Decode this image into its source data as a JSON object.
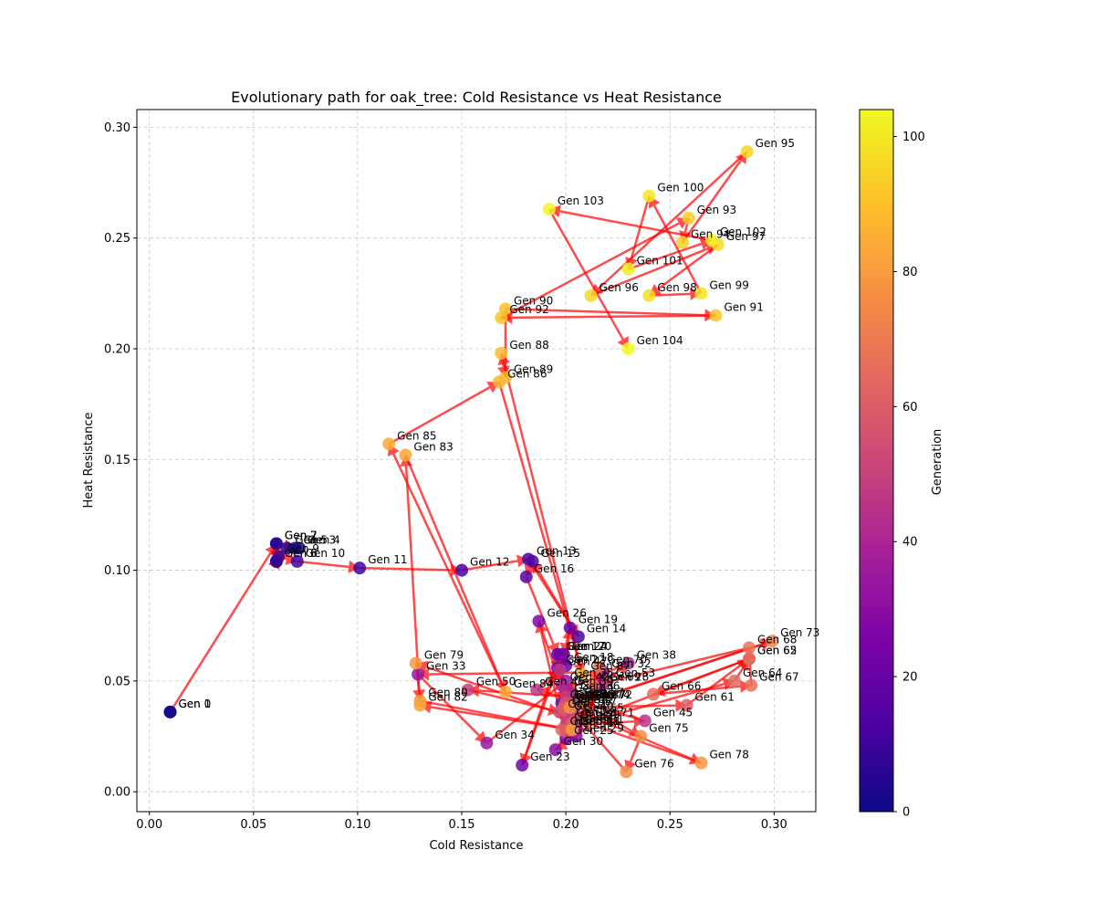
{
  "chart_data": {
    "type": "scatter",
    "title": "Evolutionary path for oak_tree: Cold Resistance vs Heat Resistance",
    "xlabel": "Cold Resistance",
    "ylabel": "Heat Resistance",
    "xlim": [
      -0.006,
      0.32
    ],
    "ylim": [
      -0.009,
      0.308
    ],
    "xticks": [
      0.0,
      0.05,
      0.1,
      0.15,
      0.2,
      0.25,
      0.3
    ],
    "xtick_labels": [
      "0.00",
      "0.05",
      "0.10",
      "0.15",
      "0.20",
      "0.25",
      "0.30"
    ],
    "yticks": [
      0.0,
      0.05,
      0.1,
      0.15,
      0.2,
      0.25,
      0.3
    ],
    "ytick_labels": [
      "0.00",
      "0.05",
      "0.10",
      "0.15",
      "0.20",
      "0.25",
      "0.30"
    ],
    "grid": true,
    "colorbar": {
      "label": "Generation",
      "min": 0,
      "max": 104,
      "ticks": [
        0,
        20,
        40,
        60,
        80,
        100
      ],
      "tick_labels": [
        "0",
        "20",
        "40",
        "60",
        "80",
        "100"
      ],
      "colormap": "plasma"
    },
    "arrow_color": "#ff0000",
    "points": [
      {
        "gen": 0,
        "label": "Gen 0",
        "x": 0.01,
        "y": 0.036
      },
      {
        "gen": 1,
        "label": "Gen 1",
        "x": 0.01,
        "y": 0.036
      },
      {
        "gen": 2,
        "label": "Gen 2",
        "x": 0.061,
        "y": 0.112
      },
      {
        "gen": 3,
        "label": "Gen 3",
        "x": 0.07,
        "y": 0.11
      },
      {
        "gen": 4,
        "label": "Gen 4",
        "x": 0.072,
        "y": 0.11
      },
      {
        "gen": 5,
        "label": "Gen 5",
        "x": 0.066,
        "y": 0.11
      },
      {
        "gen": 6,
        "label": "Gen 6",
        "x": 0.061,
        "y": 0.104
      },
      {
        "gen": 7,
        "label": "Gen 7",
        "x": 0.061,
        "y": 0.112
      },
      {
        "gen": 8,
        "label": "Gen 8",
        "x": 0.061,
        "y": 0.104
      },
      {
        "gen": 9,
        "label": "Gen 9",
        "x": 0.062,
        "y": 0.106
      },
      {
        "gen": 10,
        "label": "Gen 10",
        "x": 0.071,
        "y": 0.104
      },
      {
        "gen": 11,
        "label": "Gen 11",
        "x": 0.101,
        "y": 0.101
      },
      {
        "gen": 12,
        "label": "Gen 12",
        "x": 0.15,
        "y": 0.1
      },
      {
        "gen": 13,
        "label": "Gen 13",
        "x": 0.182,
        "y": 0.105
      },
      {
        "gen": 14,
        "label": "Gen 14",
        "x": 0.206,
        "y": 0.07
      },
      {
        "gen": 15,
        "label": "Gen 15",
        "x": 0.184,
        "y": 0.104
      },
      {
        "gen": 16,
        "label": "Gen 16",
        "x": 0.181,
        "y": 0.097
      },
      {
        "gen": 17,
        "label": "Gen 17",
        "x": 0.196,
        "y": 0.062
      },
      {
        "gen": 18,
        "label": "Gen 18",
        "x": 0.2,
        "y": 0.057
      },
      {
        "gen": 19,
        "label": "Gen 19",
        "x": 0.202,
        "y": 0.074
      },
      {
        "gen": 20,
        "label": "Gen 20",
        "x": 0.199,
        "y": 0.062
      },
      {
        "gen": 21,
        "label": "Gen 21",
        "x": 0.198,
        "y": 0.04
      },
      {
        "gen": 22,
        "label": "Gen 22",
        "x": 0.196,
        "y": 0.056
      },
      {
        "gen": 23,
        "label": "Gen 23",
        "x": 0.179,
        "y": 0.012
      },
      {
        "gen": 24,
        "label": "Gen 24",
        "x": 0.197,
        "y": 0.062
      },
      {
        "gen": 25,
        "label": "Gen 25",
        "x": 0.2,
        "y": 0.024
      },
      {
        "gen": 26,
        "label": "Gen 26",
        "x": 0.187,
        "y": 0.077
      },
      {
        "gen": 27,
        "label": "Gen 27",
        "x": 0.201,
        "y": 0.039
      },
      {
        "gen": 28,
        "label": "Gen 28",
        "x": 0.217,
        "y": 0.048
      },
      {
        "gen": 29,
        "label": "Gen 29",
        "x": 0.205,
        "y": 0.025
      },
      {
        "gen": 30,
        "label": "Gen 30",
        "x": 0.195,
        "y": 0.019
      },
      {
        "gen": 31,
        "label": "Gen 31",
        "x": 0.205,
        "y": 0.029
      },
      {
        "gen": 32,
        "label": "Gen 32",
        "x": 0.218,
        "y": 0.054
      },
      {
        "gen": 33,
        "label": "Gen 33",
        "x": 0.129,
        "y": 0.053
      },
      {
        "gen": 34,
        "label": "Gen 34",
        "x": 0.162,
        "y": 0.022
      },
      {
        "gen": 35,
        "label": "Gen 35",
        "x": 0.2,
        "y": 0.05
      },
      {
        "gen": 36,
        "label": "Gen 36",
        "x": 0.203,
        "y": 0.044
      },
      {
        "gen": 37,
        "label": "Gen 37",
        "x": 0.206,
        "y": 0.04
      },
      {
        "gen": 38,
        "label": "Gen 38",
        "x": 0.23,
        "y": 0.058
      },
      {
        "gen": 39,
        "label": "Gen 39",
        "x": 0.2,
        "y": 0.046
      },
      {
        "gen": 40,
        "label": "Gen 40",
        "x": 0.2,
        "y": 0.035
      },
      {
        "gen": 41,
        "label": "Gen 41",
        "x": 0.203,
        "y": 0.028
      },
      {
        "gen": 42,
        "label": "Gen 42",
        "x": 0.198,
        "y": 0.048
      },
      {
        "gen": 43,
        "label": "Gen 43",
        "x": 0.201,
        "y": 0.04
      },
      {
        "gen": 44,
        "label": "Gen 44",
        "x": 0.2,
        "y": 0.03
      },
      {
        "gen": 45,
        "label": "Gen 45",
        "x": 0.238,
        "y": 0.032
      },
      {
        "gen": 46,
        "label": "Gen 46",
        "x": 0.186,
        "y": 0.046
      },
      {
        "gen": 47,
        "label": "Gen 47",
        "x": 0.197,
        "y": 0.055
      },
      {
        "gen": 48,
        "label": "Gen 48",
        "x": 0.203,
        "y": 0.028
      },
      {
        "gen": 49,
        "label": "Gen 49",
        "x": 0.2,
        "y": 0.043
      },
      {
        "gen": 50,
        "label": "Gen 50",
        "x": 0.153,
        "y": 0.046
      },
      {
        "gen": 51,
        "label": "Gen 51",
        "x": 0.197,
        "y": 0.036
      },
      {
        "gen": 52,
        "label": "Gen 52",
        "x": 0.201,
        "y": 0.032
      },
      {
        "gen": 53,
        "label": "Gen 53",
        "x": 0.22,
        "y": 0.05
      },
      {
        "gen": 54,
        "label": "Gen 54",
        "x": 0.2,
        "y": 0.027
      },
      {
        "gen": 55,
        "label": "Gen 55",
        "x": 0.205,
        "y": 0.034
      },
      {
        "gen": 56,
        "label": "Gen 56",
        "x": 0.2,
        "y": 0.04
      },
      {
        "gen": 57,
        "label": "Gen 57",
        "x": 0.205,
        "y": 0.041
      },
      {
        "gen": 58,
        "label": "Gen 58",
        "x": 0.199,
        "y": 0.037
      },
      {
        "gen": 59,
        "label": "Gen 59",
        "x": 0.203,
        "y": 0.031
      },
      {
        "gen": 60,
        "label": "Gen 60",
        "x": 0.199,
        "y": 0.038
      },
      {
        "gen": 61,
        "label": "Gen 61",
        "x": 0.258,
        "y": 0.039
      },
      {
        "gen": 62,
        "label": "Gen 62",
        "x": 0.288,
        "y": 0.06
      },
      {
        "gen": 63,
        "label": "Gen 63",
        "x": 0.198,
        "y": 0.028
      },
      {
        "gen": 64,
        "label": "Gen 64",
        "x": 0.281,
        "y": 0.05
      },
      {
        "gen": 65,
        "label": "Gen 65",
        "x": 0.288,
        "y": 0.06
      },
      {
        "gen": 66,
        "label": "Gen 66",
        "x": 0.242,
        "y": 0.044
      },
      {
        "gen": 67,
        "label": "Gen 67",
        "x": 0.289,
        "y": 0.048
      },
      {
        "gen": 68,
        "label": "Gen 68",
        "x": 0.288,
        "y": 0.065
      },
      {
        "gen": 69,
        "label": "Gen 69",
        "x": 0.213,
        "y": 0.048
      },
      {
        "gen": 70,
        "label": "Gen 70",
        "x": 0.216,
        "y": 0.056
      },
      {
        "gen": 71,
        "label": "Gen 71",
        "x": 0.21,
        "y": 0.032
      },
      {
        "gen": 72,
        "label": "Gen 72",
        "x": 0.209,
        "y": 0.04
      },
      {
        "gen": 73,
        "label": "Gen 73",
        "x": 0.299,
        "y": 0.068
      },
      {
        "gen": 74,
        "label": "Gen 74",
        "x": 0.208,
        "y": 0.04
      },
      {
        "gen": 75,
        "label": "Gen 75",
        "x": 0.236,
        "y": 0.025
      },
      {
        "gen": 76,
        "label": "Gen 76",
        "x": 0.229,
        "y": 0.009
      },
      {
        "gen": 77,
        "label": "Gen 77",
        "x": 0.202,
        "y": 0.038
      },
      {
        "gen": 78,
        "label": "Gen 78",
        "x": 0.265,
        "y": 0.013
      },
      {
        "gen": 79,
        "label": "Gen 79",
        "x": 0.128,
        "y": 0.058
      },
      {
        "gen": 80,
        "label": "Gen 80",
        "x": 0.13,
        "y": 0.041
      },
      {
        "gen": 81,
        "label": "Gen 81",
        "x": 0.203,
        "y": 0.028
      },
      {
        "gen": 82,
        "label": "Gen 82",
        "x": 0.13,
        "y": 0.039
      },
      {
        "gen": 83,
        "label": "Gen 83",
        "x": 0.123,
        "y": 0.152
      },
      {
        "gen": 84,
        "label": "Gen 84",
        "x": 0.171,
        "y": 0.045
      },
      {
        "gen": 85,
        "label": "Gen 85",
        "x": 0.115,
        "y": 0.157
      },
      {
        "gen": 86,
        "label": "Gen 86",
        "x": 0.168,
        "y": 0.185
      },
      {
        "gen": 87,
        "label": "Gen 87",
        "x": 0.208,
        "y": 0.053
      },
      {
        "gen": 88,
        "label": "Gen 88",
        "x": 0.169,
        "y": 0.198
      },
      {
        "gen": 89,
        "label": "Gen 89",
        "x": 0.171,
        "y": 0.187
      },
      {
        "gen": 90,
        "label": "Gen 90",
        "x": 0.171,
        "y": 0.218
      },
      {
        "gen": 91,
        "label": "Gen 91",
        "x": 0.272,
        "y": 0.215
      },
      {
        "gen": 92,
        "label": "Gen 92",
        "x": 0.169,
        "y": 0.214
      },
      {
        "gen": 93,
        "label": "Gen 93",
        "x": 0.259,
        "y": 0.259
      },
      {
        "gen": 94,
        "label": "Gen 94",
        "x": 0.256,
        "y": 0.248
      },
      {
        "gen": 95,
        "label": "Gen 95",
        "x": 0.287,
        "y": 0.289
      },
      {
        "gen": 96,
        "label": "Gen 96",
        "x": 0.212,
        "y": 0.224
      },
      {
        "gen": 97,
        "label": "Gen 97",
        "x": 0.273,
        "y": 0.247
      },
      {
        "gen": 98,
        "label": "Gen 98",
        "x": 0.24,
        "y": 0.224
      },
      {
        "gen": 99,
        "label": "Gen 99",
        "x": 0.265,
        "y": 0.225
      },
      {
        "gen": 100,
        "label": "Gen 100",
        "x": 0.24,
        "y": 0.269
      },
      {
        "gen": 101,
        "label": "Gen 101",
        "x": 0.23,
        "y": 0.236
      },
      {
        "gen": 102,
        "label": "Gen 102",
        "x": 0.27,
        "y": 0.249
      },
      {
        "gen": 103,
        "label": "Gen 103",
        "x": 0.192,
        "y": 0.263
      },
      {
        "gen": 104,
        "label": "Gen 104",
        "x": 0.23,
        "y": 0.2
      }
    ]
  }
}
